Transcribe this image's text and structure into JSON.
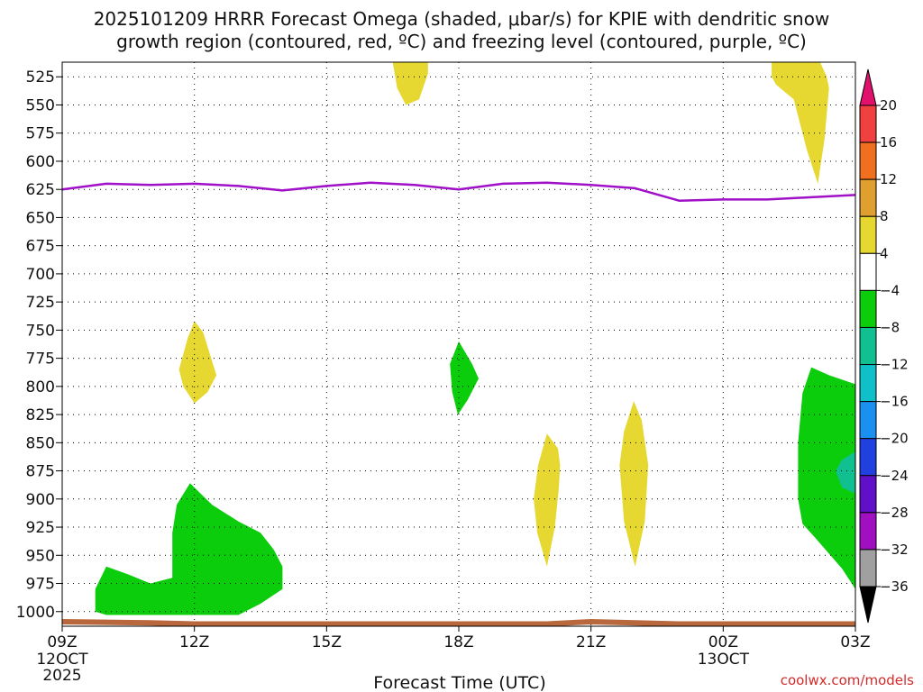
{
  "chart_data": {
    "type": "heatmap",
    "title_line1": "2025101209 HRRR Forecast Omega (shaded, μbar/s) for KPIE with dendritic snow",
    "title_line2": "growth region (contoured, red, ºC) and freezing level (contoured, purple, ºC)",
    "xlabel": "Forecast Time (UTC)",
    "credit": "coolwx.com/models",
    "x_range_hours": [
      0,
      18
    ],
    "x_ticks": [
      {
        "hour": 0,
        "label": "09Z",
        "date": "12OCT",
        "year": "2025"
      },
      {
        "hour": 3,
        "label": "12Z"
      },
      {
        "hour": 6,
        "label": "15Z"
      },
      {
        "hour": 9,
        "label": "18Z"
      },
      {
        "hour": 12,
        "label": "21Z"
      },
      {
        "hour": 15,
        "label": "00Z",
        "date": "13OCT"
      },
      {
        "hour": 18,
        "label": "03Z"
      }
    ],
    "y_range_hpa": [
      1013,
      512
    ],
    "y_ticks": [
      525,
      550,
      575,
      600,
      625,
      650,
      675,
      700,
      725,
      750,
      775,
      800,
      825,
      850,
      875,
      900,
      925,
      950,
      975,
      1000
    ],
    "colorbar": {
      "labels": [
        "20",
        "16",
        "12",
        "8",
        "4",
        "−4",
        "−8",
        "−12",
        "−16",
        "−20",
        "−24",
        "−28",
        "−32",
        "−36"
      ],
      "bins": [
        {
          "from": 16,
          "to": 20,
          "color": "#f04040"
        },
        {
          "from": 12,
          "to": 16,
          "color": "#f07020"
        },
        {
          "from": 8,
          "to": 12,
          "color": "#e0a030"
        },
        {
          "from": 4,
          "to": 8,
          "color": "#e6d830"
        },
        {
          "from": -4,
          "to": 4,
          "color": "#ffffff"
        },
        {
          "from": -8,
          "to": -4,
          "color": "#0ccd0c"
        },
        {
          "from": -12,
          "to": -8,
          "color": "#10c090"
        },
        {
          "from": -16,
          "to": -12,
          "color": "#10c0c8"
        },
        {
          "from": -20,
          "to": -16,
          "color": "#1a90f0"
        },
        {
          "from": -24,
          "to": -20,
          "color": "#2040e0"
        },
        {
          "from": -28,
          "to": -24,
          "color": "#6010c8"
        },
        {
          "from": -32,
          "to": -28,
          "color": "#a010c0"
        },
        {
          "from": -36,
          "to": -32,
          "color": "#a0a0a0"
        }
      ],
      "over_color": "#e0106c",
      "under_color": "#000000"
    },
    "freezing_level": {
      "color": "#a010c8",
      "points": [
        [
          0,
          625
        ],
        [
          1,
          620
        ],
        [
          2,
          621
        ],
        [
          3,
          620
        ],
        [
          4,
          622
        ],
        [
          5,
          626
        ],
        [
          6,
          622
        ],
        [
          7,
          619
        ],
        [
          8,
          621
        ],
        [
          9,
          625
        ],
        [
          10,
          620
        ],
        [
          11,
          619
        ],
        [
          12,
          621
        ],
        [
          13,
          624
        ],
        [
          14,
          635
        ],
        [
          15,
          634
        ],
        [
          16,
          634
        ],
        [
          17,
          632
        ],
        [
          18,
          630
        ]
      ]
    },
    "ground": {
      "color": "#b8683c",
      "points": [
        [
          0,
          1009
        ],
        [
          2,
          1010
        ],
        [
          3,
          1011
        ],
        [
          6,
          1011
        ],
        [
          9,
          1011
        ],
        [
          11,
          1011
        ],
        [
          12,
          1009
        ],
        [
          13,
          1010
        ],
        [
          14,
          1011
        ],
        [
          18,
          1011
        ]
      ]
    },
    "omega_regions": [
      {
        "label": "ascent 4-8",
        "value": 4,
        "color": "#e6d830",
        "points": [
          [
            7.7,
            512
          ],
          [
            8.3,
            512
          ],
          [
            8.3,
            522
          ],
          [
            8.1,
            545
          ],
          [
            7.8,
            550
          ],
          [
            7.6,
            535
          ],
          [
            7.5,
            512
          ]
        ]
      },
      {
        "label": "ascent 4-8",
        "value": 4,
        "color": "#e6d830",
        "points": [
          [
            16.1,
            512
          ],
          [
            17.2,
            512
          ],
          [
            17.35,
            525
          ],
          [
            17.4,
            535
          ],
          [
            17.3,
            580
          ],
          [
            17.15,
            620
          ],
          [
            16.9,
            590
          ],
          [
            16.6,
            545
          ],
          [
            16.2,
            532
          ],
          [
            16.1,
            525
          ]
        ]
      },
      {
        "label": "ascent 4-8",
        "value": 4,
        "color": "#e6d830",
        "points": [
          [
            3.0,
            742
          ],
          [
            3.2,
            752
          ],
          [
            3.5,
            790
          ],
          [
            3.3,
            805
          ],
          [
            3.0,
            815
          ],
          [
            2.75,
            800
          ],
          [
            2.65,
            785
          ],
          [
            2.85,
            757
          ]
        ]
      },
      {
        "label": "ascent 4-8",
        "value": 4,
        "color": "#e6d830",
        "points": [
          [
            11.0,
            842
          ],
          [
            11.25,
            855
          ],
          [
            11.3,
            870
          ],
          [
            11.27,
            890
          ],
          [
            11.18,
            925
          ],
          [
            11.0,
            960
          ],
          [
            10.78,
            930
          ],
          [
            10.7,
            900
          ],
          [
            10.8,
            870
          ]
        ]
      },
      {
        "label": "ascent 4-8",
        "value": 4,
        "color": "#e6d830",
        "points": [
          [
            12.97,
            813
          ],
          [
            13.15,
            830
          ],
          [
            13.3,
            870
          ],
          [
            13.22,
            920
          ],
          [
            13.0,
            960
          ],
          [
            12.75,
            920
          ],
          [
            12.65,
            870
          ],
          [
            12.75,
            840
          ]
        ]
      },
      {
        "label": "sinking -4 to -8",
        "value": -4,
        "color": "#0ccd0c",
        "points": [
          [
            2.9,
            886
          ],
          [
            3.4,
            905
          ],
          [
            4.0,
            920
          ],
          [
            4.5,
            930
          ],
          [
            4.8,
            945
          ],
          [
            5.0,
            960
          ],
          [
            5.0,
            980
          ],
          [
            4.5,
            993
          ],
          [
            4.0,
            1003
          ],
          [
            3.0,
            1003
          ],
          [
            1.0,
            1003
          ],
          [
            0.75,
            1000
          ],
          [
            0.75,
            980
          ],
          [
            1.0,
            960
          ],
          [
            1.5,
            967
          ],
          [
            2.0,
            975
          ],
          [
            2.5,
            970
          ],
          [
            2.5,
            960
          ],
          [
            2.5,
            930
          ],
          [
            2.6,
            905
          ]
        ]
      },
      {
        "label": "sinking -4 to -8",
        "value": -4,
        "color": "#0ccd0c",
        "points": [
          [
            9.0,
            760
          ],
          [
            9.3,
            780
          ],
          [
            9.45,
            793
          ],
          [
            9.2,
            812
          ],
          [
            8.98,
            825
          ],
          [
            8.85,
            805
          ],
          [
            8.8,
            780
          ]
        ]
      },
      {
        "label": "sinking -4 to -8",
        "value": -4,
        "color": "#0ccd0c",
        "points": [
          [
            17.0,
            783
          ],
          [
            17.4,
            790
          ],
          [
            18.0,
            798
          ],
          [
            18.0,
            980
          ],
          [
            17.7,
            962
          ],
          [
            17.1,
            935
          ],
          [
            16.8,
            922
          ],
          [
            16.7,
            900
          ],
          [
            16.7,
            850
          ],
          [
            16.8,
            806
          ]
        ]
      },
      {
        "label": "sinking -8 to -12",
        "value": -8,
        "color": "#10c090",
        "points": [
          [
            18.0,
            858
          ],
          [
            18.0,
            895
          ],
          [
            17.7,
            890
          ],
          [
            17.55,
            875
          ],
          [
            17.7,
            865
          ]
        ]
      }
    ]
  }
}
